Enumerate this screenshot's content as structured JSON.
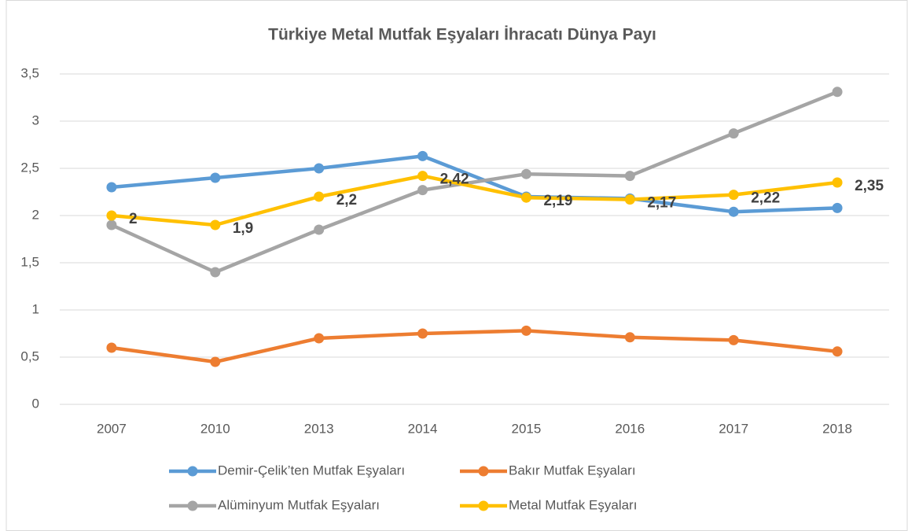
{
  "chart_data": {
    "type": "line",
    "title": "Türkiye Metal Mutfak Eşyaları İhracatı Dünya Payı",
    "categories": [
      "2007",
      "2010",
      "2013",
      "2014",
      "2015",
      "2016",
      "2017",
      "2018"
    ],
    "series": [
      {
        "name": "Demir-Çelik’ten Mutfak Eşyaları",
        "color": "#5B9BD5",
        "values": [
          2.3,
          2.4,
          2.5,
          2.63,
          2.2,
          2.18,
          2.04,
          2.08
        ]
      },
      {
        "name": "Bakır Mutfak Eşyaları",
        "color": "#ED7D31",
        "values": [
          0.6,
          0.45,
          0.7,
          0.75,
          0.78,
          0.71,
          0.68,
          0.56
        ]
      },
      {
        "name": "Alüminyum Mutfak Eşyaları",
        "color": "#A5A5A5",
        "values": [
          1.9,
          1.4,
          1.85,
          2.27,
          2.44,
          2.42,
          2.87,
          3.31
        ]
      },
      {
        "name": "Metal Mutfak Eşyaları",
        "color": "#FFC000",
        "values": [
          2,
          1.9,
          2.2,
          2.42,
          2.19,
          2.17,
          2.22,
          2.35
        ],
        "value_labels": [
          "2",
          "1,9",
          "2,2",
          "2,42",
          "2,19",
          "2,17",
          "2,22",
          "2,35"
        ]
      }
    ],
    "ylim": [
      0,
      3.5
    ],
    "yticks": [
      0,
      {
        "value": 0.5,
        "label": "0,5"
      },
      1,
      {
        "value": 1.5,
        "label": "1,5"
      },
      2,
      {
        "value": 2.5,
        "label": "2,5"
      },
      3,
      {
        "value": 3.5,
        "label": "3,5"
      }
    ],
    "grid": true,
    "legend": "bottom"
  }
}
